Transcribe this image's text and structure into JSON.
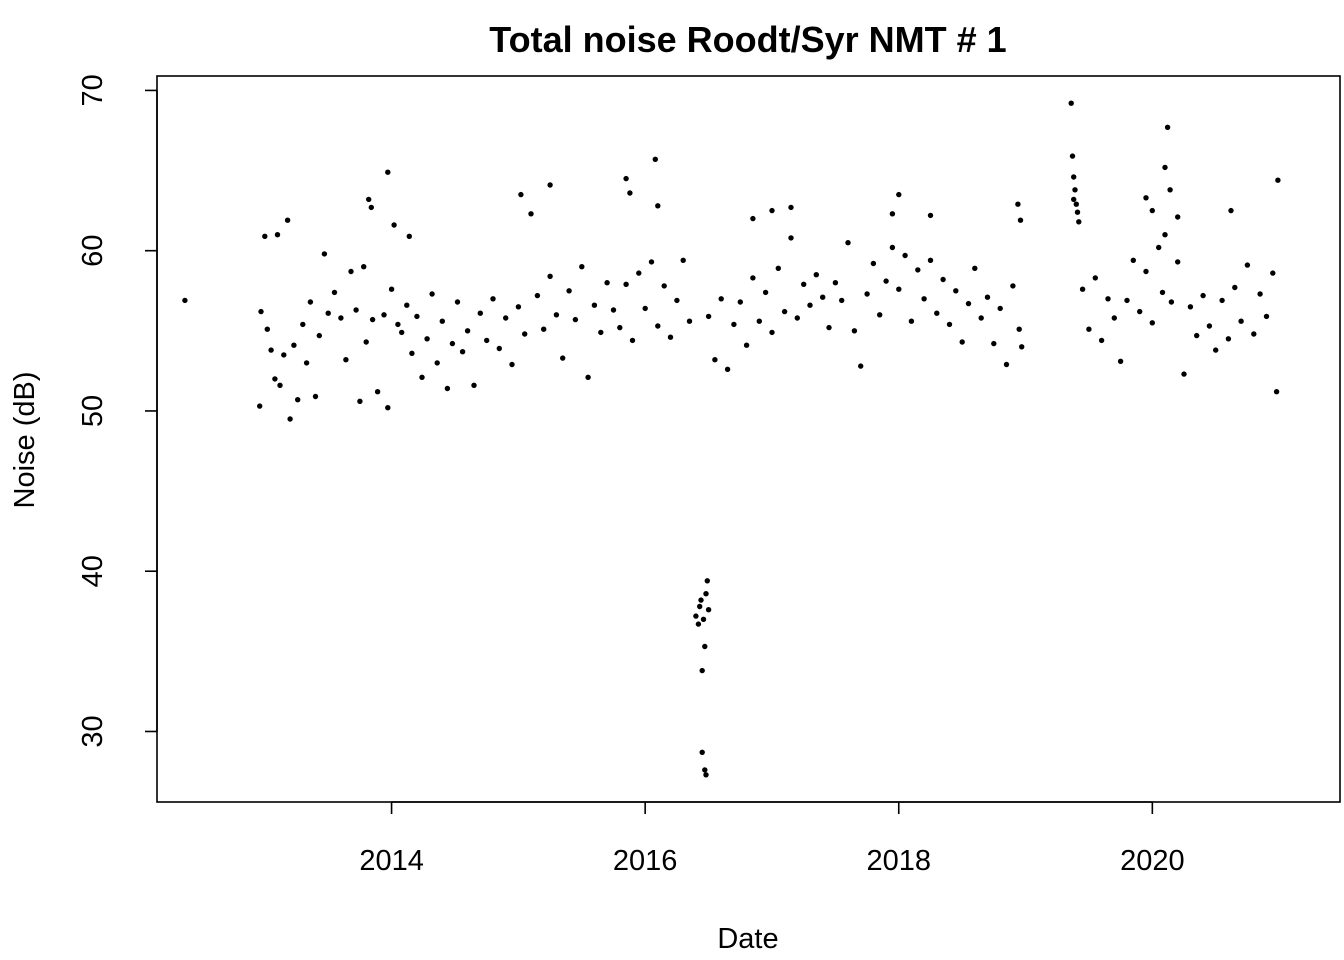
{
  "chart_data": {
    "type": "scatter",
    "title": "Total noise Roodt/Syr NMT # 1",
    "xlabel": "Date",
    "ylabel": "Noise (dB)",
    "xlim": [
      2012.15,
      2021.48
    ],
    "ylim": [
      25.6,
      70.9
    ],
    "x_ticks": [
      {
        "value": 2014,
        "label": "2014"
      },
      {
        "value": 2016,
        "label": "2016"
      },
      {
        "value": 2018,
        "label": "2018"
      },
      {
        "value": 2020,
        "label": "2020"
      }
    ],
    "y_ticks": [
      {
        "value": 30,
        "label": "30"
      },
      {
        "value": 40,
        "label": "40"
      },
      {
        "value": 50,
        "label": "50"
      },
      {
        "value": 60,
        "label": "60"
      },
      {
        "value": 70,
        "label": "70"
      }
    ],
    "marker_color": "#000000",
    "series": [
      {
        "name": "Total noise",
        "points": [
          [
            2012.37,
            56.9
          ],
          [
            2012.96,
            50.3
          ],
          [
            2012.97,
            56.2
          ],
          [
            2013.0,
            60.9
          ],
          [
            2013.02,
            55.1
          ],
          [
            2013.05,
            53.8
          ],
          [
            2013.08,
            52.0
          ],
          [
            2013.1,
            61.0
          ],
          [
            2013.12,
            51.6
          ],
          [
            2013.15,
            53.5
          ],
          [
            2013.18,
            61.9
          ],
          [
            2013.2,
            49.5
          ],
          [
            2013.23,
            54.1
          ],
          [
            2013.26,
            50.7
          ],
          [
            2013.3,
            55.4
          ],
          [
            2013.33,
            53.0
          ],
          [
            2013.36,
            56.8
          ],
          [
            2013.4,
            50.9
          ],
          [
            2013.43,
            54.7
          ],
          [
            2013.47,
            59.8
          ],
          [
            2013.5,
            56.1
          ],
          [
            2013.55,
            57.4
          ],
          [
            2013.6,
            55.8
          ],
          [
            2013.64,
            53.2
          ],
          [
            2013.68,
            58.7
          ],
          [
            2013.72,
            56.3
          ],
          [
            2013.75,
            50.6
          ],
          [
            2013.78,
            59.0
          ],
          [
            2013.8,
            54.3
          ],
          [
            2013.85,
            55.7
          ],
          [
            2013.89,
            51.2
          ],
          [
            2013.94,
            56.0
          ],
          [
            2013.97,
            50.2
          ],
          [
            2014.0,
            57.6
          ],
          [
            2014.02,
            61.6
          ],
          [
            2014.05,
            55.4
          ],
          [
            2013.82,
            63.2
          ],
          [
            2013.84,
            62.7
          ],
          [
            2013.97,
            64.9
          ],
          [
            2014.14,
            60.9
          ],
          [
            2014.08,
            54.9
          ],
          [
            2014.12,
            56.6
          ],
          [
            2014.16,
            53.6
          ],
          [
            2014.2,
            55.9
          ],
          [
            2014.24,
            52.1
          ],
          [
            2014.28,
            54.5
          ],
          [
            2014.32,
            57.3
          ],
          [
            2014.36,
            53.0
          ],
          [
            2014.4,
            55.6
          ],
          [
            2014.44,
            51.4
          ],
          [
            2014.48,
            54.2
          ],
          [
            2014.52,
            56.8
          ],
          [
            2014.56,
            53.7
          ],
          [
            2014.6,
            55.0
          ],
          [
            2014.65,
            51.6
          ],
          [
            2014.7,
            56.1
          ],
          [
            2014.75,
            54.4
          ],
          [
            2014.8,
            57.0
          ],
          [
            2014.85,
            53.9
          ],
          [
            2014.9,
            55.8
          ],
          [
            2014.95,
            52.9
          ],
          [
            2015.0,
            56.5
          ],
          [
            2015.05,
            54.8
          ],
          [
            2015.1,
            62.3
          ],
          [
            2015.15,
            57.2
          ],
          [
            2015.2,
            55.1
          ],
          [
            2015.25,
            58.4
          ],
          [
            2015.3,
            56.0
          ],
          [
            2015.35,
            53.3
          ],
          [
            2015.4,
            57.5
          ],
          [
            2015.45,
            55.7
          ],
          [
            2015.5,
            59.0
          ],
          [
            2015.55,
            52.1
          ],
          [
            2015.6,
            56.6
          ],
          [
            2015.65,
            54.9
          ],
          [
            2015.7,
            58.0
          ],
          [
            2015.75,
            56.3
          ],
          [
            2015.8,
            55.2
          ],
          [
            2015.85,
            57.9
          ],
          [
            2015.9,
            54.4
          ],
          [
            2015.95,
            58.6
          ],
          [
            2016.0,
            56.4
          ],
          [
            2016.05,
            59.3
          ],
          [
            2016.1,
            55.3
          ],
          [
            2016.15,
            57.8
          ],
          [
            2016.2,
            54.6
          ],
          [
            2016.25,
            56.9
          ],
          [
            2016.3,
            59.4
          ],
          [
            2016.35,
            55.6
          ],
          [
            2015.02,
            63.5
          ],
          [
            2015.25,
            64.1
          ],
          [
            2015.85,
            64.5
          ],
          [
            2015.88,
            63.6
          ],
          [
            2016.08,
            65.7
          ],
          [
            2016.1,
            62.8
          ],
          [
            2016.4,
            37.2
          ],
          [
            2016.42,
            36.7
          ],
          [
            2016.43,
            37.8
          ],
          [
            2016.44,
            38.2
          ],
          [
            2016.45,
            33.8
          ],
          [
            2016.46,
            37.0
          ],
          [
            2016.47,
            35.3
          ],
          [
            2016.48,
            38.6
          ],
          [
            2016.49,
            39.4
          ],
          [
            2016.5,
            37.6
          ],
          [
            2016.45,
            28.7
          ],
          [
            2016.47,
            27.6
          ],
          [
            2016.48,
            27.3
          ],
          [
            2016.5,
            55.9
          ],
          [
            2016.55,
            53.2
          ],
          [
            2016.6,
            57.0
          ],
          [
            2016.65,
            52.6
          ],
          [
            2016.7,
            55.4
          ],
          [
            2016.75,
            56.8
          ],
          [
            2016.8,
            54.1
          ],
          [
            2016.85,
            58.3
          ],
          [
            2016.9,
            55.6
          ],
          [
            2016.95,
            57.4
          ],
          [
            2017.0,
            54.9
          ],
          [
            2017.05,
            58.9
          ],
          [
            2017.1,
            56.2
          ],
          [
            2017.15,
            60.8
          ],
          [
            2017.2,
            55.8
          ],
          [
            2017.25,
            57.9
          ],
          [
            2017.3,
            56.6
          ],
          [
            2017.35,
            58.5
          ],
          [
            2017.4,
            57.1
          ],
          [
            2017.45,
            55.2
          ],
          [
            2017.5,
            58.0
          ],
          [
            2017.55,
            56.9
          ],
          [
            2017.6,
            60.5
          ],
          [
            2017.65,
            55.0
          ],
          [
            2017.7,
            52.8
          ],
          [
            2017.75,
            57.3
          ],
          [
            2017.8,
            59.2
          ],
          [
            2017.85,
            56.0
          ],
          [
            2017.9,
            58.1
          ],
          [
            2017.95,
            60.2
          ],
          [
            2018.0,
            57.6
          ],
          [
            2018.05,
            59.7
          ],
          [
            2018.1,
            55.6
          ],
          [
            2018.15,
            58.8
          ],
          [
            2018.2,
            57.0
          ],
          [
            2018.25,
            59.4
          ],
          [
            2018.3,
            56.1
          ],
          [
            2018.35,
            58.2
          ],
          [
            2018.4,
            55.4
          ],
          [
            2018.45,
            57.5
          ],
          [
            2018.5,
            54.3
          ],
          [
            2018.55,
            56.7
          ],
          [
            2018.6,
            58.9
          ],
          [
            2018.65,
            55.8
          ],
          [
            2018.7,
            57.1
          ],
          [
            2018.75,
            54.2
          ],
          [
            2018.8,
            56.4
          ],
          [
            2018.85,
            52.9
          ],
          [
            2018.9,
            57.8
          ],
          [
            2018.95,
            55.1
          ],
          [
            2018.97,
            54.0
          ],
          [
            2018.94,
            62.9
          ],
          [
            2018.96,
            61.9
          ],
          [
            2016.85,
            62.0
          ],
          [
            2017.0,
            62.5
          ],
          [
            2017.15,
            62.7
          ],
          [
            2017.95,
            62.3
          ],
          [
            2018.0,
            63.5
          ],
          [
            2018.25,
            62.2
          ],
          [
            2019.36,
            69.2
          ],
          [
            2019.37,
            65.9
          ],
          [
            2019.38,
            64.6
          ],
          [
            2019.39,
            63.8
          ],
          [
            2019.4,
            62.9
          ],
          [
            2019.41,
            62.4
          ],
          [
            2019.42,
            61.8
          ],
          [
            2019.38,
            63.2
          ],
          [
            2019.45,
            57.6
          ],
          [
            2019.5,
            55.1
          ],
          [
            2019.55,
            58.3
          ],
          [
            2019.6,
            54.4
          ],
          [
            2019.65,
            57.0
          ],
          [
            2019.7,
            55.8
          ],
          [
            2019.75,
            53.1
          ],
          [
            2019.8,
            56.9
          ],
          [
            2019.85,
            59.4
          ],
          [
            2019.9,
            56.2
          ],
          [
            2019.95,
            58.7
          ],
          [
            2020.0,
            55.5
          ],
          [
            2020.05,
            60.2
          ],
          [
            2020.08,
            57.4
          ],
          [
            2020.1,
            61.0
          ],
          [
            2020.15,
            56.8
          ],
          [
            2020.2,
            59.3
          ],
          [
            2020.25,
            52.3
          ],
          [
            2020.3,
            56.5
          ],
          [
            2020.35,
            54.7
          ],
          [
            2020.4,
            57.2
          ],
          [
            2020.45,
            55.3
          ],
          [
            2020.5,
            53.8
          ],
          [
            2020.55,
            56.9
          ],
          [
            2020.6,
            54.5
          ],
          [
            2020.65,
            57.7
          ],
          [
            2020.7,
            55.6
          ],
          [
            2020.75,
            59.1
          ],
          [
            2020.8,
            54.8
          ],
          [
            2020.85,
            57.3
          ],
          [
            2020.9,
            55.9
          ],
          [
            2020.95,
            58.6
          ],
          [
            2020.98,
            51.2
          ],
          [
            2020.99,
            64.4
          ],
          [
            2019.95,
            63.3
          ],
          [
            2020.0,
            62.5
          ],
          [
            2020.1,
            65.2
          ],
          [
            2020.12,
            67.7
          ],
          [
            2020.14,
            63.8
          ],
          [
            2020.2,
            62.1
          ],
          [
            2020.62,
            62.5
          ]
        ]
      }
    ]
  }
}
